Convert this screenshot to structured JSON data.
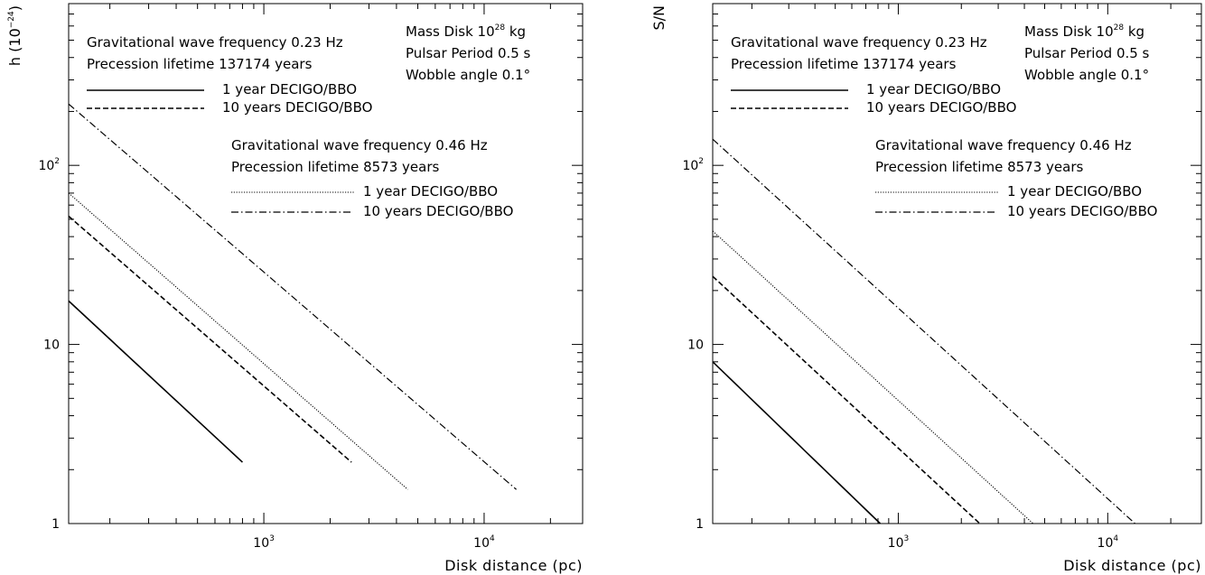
{
  "chart_data": [
    {
      "type": "line",
      "xlabel": "Disk distance (pc)",
      "ylabel": "h (10",
      "ylabel_exp": "−24",
      "ylabel_close": ")",
      "xscale": "log",
      "yscale": "log",
      "xlim": [
        130,
        28000
      ],
      "ylim": [
        1,
        800
      ],
      "xticks": [
        {
          "value": 1000,
          "base": "10",
          "exp": "3"
        },
        {
          "value": 10000,
          "base": "10",
          "exp": "4"
        }
      ],
      "yticks": [
        {
          "value": 1,
          "label": "1"
        },
        {
          "value": 10,
          "label": "10"
        },
        {
          "value": 100,
          "base": "10",
          "exp": "2"
        }
      ],
      "annotation": {
        "line1_pre": "Mass Disk 10",
        "line1_exp": "28",
        "line1_post": " kg",
        "line2": "Pulsar Period 0.5 s",
        "line3": "Wobble angle 0.1°"
      },
      "group1": {
        "title": "Gravitational wave frequency 0.23 Hz",
        "lifetime": "Precession lifetime 137174 years"
      },
      "group2": {
        "title": "Gravitational wave frequency 0.46 Hz",
        "lifetime": "Precession lifetime 8573 years"
      },
      "series": [
        {
          "name": "1 year DECIGO/BBO",
          "style": "solid",
          "x": [
            130,
            800
          ],
          "y": [
            17.5,
            2.2
          ]
        },
        {
          "name": "10 years DECIGO/BBO",
          "style": "dashed",
          "x": [
            130,
            2500
          ],
          "y": [
            52,
            2.2
          ]
        },
        {
          "name": "1 year DECIGO/BBO",
          "style": "dotted",
          "x": [
            130,
            4500
          ],
          "y": [
            70,
            1.55
          ]
        },
        {
          "name": "10 years DECIGO/BBO",
          "style": "dashdot",
          "x": [
            130,
            14000
          ],
          "y": [
            220,
            1.55
          ]
        }
      ]
    },
    {
      "type": "line",
      "xlabel": "Disk distance (pc)",
      "ylabel": "S/N",
      "ylabel_exp": "",
      "ylabel_close": "",
      "xscale": "log",
      "yscale": "log",
      "xlim": [
        130,
        28000
      ],
      "ylim": [
        1,
        800
      ],
      "xticks": [
        {
          "value": 1000,
          "base": "10",
          "exp": "3"
        },
        {
          "value": 10000,
          "base": "10",
          "exp": "4"
        }
      ],
      "yticks": [
        {
          "value": 1,
          "label": "1"
        },
        {
          "value": 10,
          "label": "10"
        },
        {
          "value": 100,
          "base": "10",
          "exp": "2"
        }
      ],
      "annotation": {
        "line1_pre": "Mass Disk 10",
        "line1_exp": "28",
        "line1_post": " kg",
        "line2": "Pulsar Period 0.5 s",
        "line3": "Wobble angle 0.1°"
      },
      "group1": {
        "title": "Gravitational wave frequency 0.23 Hz",
        "lifetime": "Precession lifetime 137174 years"
      },
      "group2": {
        "title": "Gravitational wave frequency 0.46 Hz",
        "lifetime": "Precession lifetime 8573 years"
      },
      "series": [
        {
          "name": "1 year DECIGO/BBO",
          "style": "solid",
          "x": [
            130,
            820
          ],
          "y": [
            8,
            1
          ]
        },
        {
          "name": "10 years DECIGO/BBO",
          "style": "dashed",
          "x": [
            130,
            2450
          ],
          "y": [
            24,
            1
          ]
        },
        {
          "name": "1 year DECIGO/BBO",
          "style": "dotted",
          "x": [
            130,
            4400
          ],
          "y": [
            43,
            1
          ]
        },
        {
          "name": "10 years DECIGO/BBO",
          "style": "dashdot",
          "x": [
            130,
            13500
          ],
          "y": [
            140,
            1
          ]
        }
      ]
    }
  ]
}
